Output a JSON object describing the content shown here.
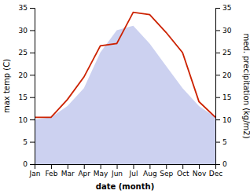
{
  "chart_data": {
    "type": "line",
    "categories": [
      "Jan",
      "Feb",
      "Mar",
      "Apr",
      "May",
      "Jun",
      "Jul",
      "Aug",
      "Sep",
      "Oct",
      "Nov",
      "Dec"
    ],
    "series": [
      {
        "type": "area",
        "axis": "y2",
        "color": "#b0b8e8",
        "values": [
          10.0,
          10.5,
          13.0,
          17.0,
          25.0,
          30.0,
          31.0,
          27.0,
          22.0,
          17.0,
          13.0,
          10.5
        ]
      },
      {
        "type": "line",
        "color": "#cc2200",
        "values": [
          10.5,
          10.5,
          14.5,
          19.5,
          26.5,
          27.0,
          34.0,
          33.5,
          29.5,
          25.0,
          14.0,
          10.5
        ]
      }
    ],
    "xlabel": "date (month)",
    "ylabel": "max temp (C)",
    "y2label": "med. precipitation (kg/m2)",
    "ylim": [
      0,
      35
    ],
    "yticks": [
      0,
      5,
      10,
      15,
      20,
      25,
      30,
      35
    ],
    "y2lim": [
      0,
      35
    ],
    "y2ticks": [
      0,
      5,
      10,
      15,
      20,
      25,
      30,
      35
    ],
    "grid": false
  }
}
